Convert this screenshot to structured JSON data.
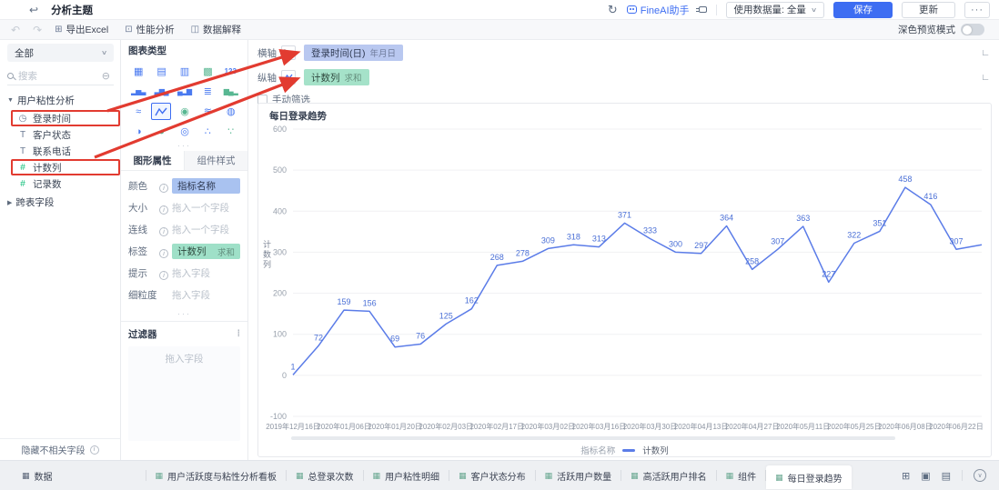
{
  "topbar": {
    "title": "分析主题",
    "fineai_label": "FineAI助手",
    "data_volume_label": "使用数据量: 全量",
    "save_label": "保存",
    "update_label": "更新",
    "more_label": "···"
  },
  "toolbar": {
    "export_excel": "导出Excel",
    "performance_analysis": "性能分析",
    "data_explanation": "数据解释",
    "dark_mode_label": "深色预览模式"
  },
  "sidebar": {
    "scope_selector": "全部",
    "search_placeholder": "搜索",
    "group_label": "用户粘性分析",
    "fields": [
      {
        "label": "登录时间",
        "icon": "clock-field-icon",
        "glyph": "◷",
        "color": "#6b7a93",
        "highlighted": true
      },
      {
        "label": "客户状态",
        "icon": "text-field-icon",
        "glyph": "T",
        "color": "#6b7a93",
        "highlighted": false
      },
      {
        "label": "联系电话",
        "icon": "text-field-icon",
        "glyph": "T",
        "color": "#6b7a93",
        "highlighted": false
      },
      {
        "label": "计数列",
        "icon": "number-field-icon",
        "glyph": "#",
        "color": "#10bf7a",
        "highlighted": true
      },
      {
        "label": "记录数",
        "icon": "record-count-field-icon",
        "glyph": "#",
        "color": "#10bf7a",
        "highlighted": false
      }
    ],
    "collapsed_group_label": "跨表字段",
    "hide_unrelated_label": "隐藏不相关字段"
  },
  "chart_panel": {
    "section_title": "图表类型",
    "chart_types": [
      {
        "name": "grouped-table-chart-icon",
        "glyph": "▦",
        "color": "#4a7af0"
      },
      {
        "name": "cross-table-chart-icon",
        "glyph": "▤",
        "color": "#4a7af0"
      },
      {
        "name": "detail-table-chart-icon",
        "glyph": "▥",
        "color": "#4a7af0"
      },
      {
        "name": "color-table-chart-icon",
        "glyph": "▩",
        "color": "#58b792"
      },
      {
        "name": "kpi-card-chart-icon",
        "glyph": "123",
        "color": "#4a7af0"
      },
      {
        "name": "column-chart-icon",
        "glyph": "▂▅▃",
        "color": "#4a7af0"
      },
      {
        "name": "stacked-column-chart-icon",
        "glyph": "▃▆▄",
        "color": "#4a7af0"
      },
      {
        "name": "combo-chart-icon",
        "glyph": "▄▂▆",
        "color": "#4a7af0"
      },
      {
        "name": "bar-chart-icon",
        "glyph": "≣",
        "color": "#4a7af0"
      },
      {
        "name": "waterfall-chart-icon",
        "glyph": "▆▄▂",
        "color": "#58b792"
      },
      {
        "name": "area-chart-icon",
        "glyph": "≈",
        "color": "#4a7af0"
      },
      {
        "name": "line-chart-icon",
        "glyph": "zigzag",
        "color": "#3d6df2",
        "selected": true
      },
      {
        "name": "map-chart-icon",
        "glyph": "◉",
        "color": "#58b792"
      },
      {
        "name": "curve-chart-icon",
        "glyph": "≋",
        "color": "#4a7af0"
      },
      {
        "name": "rose-chart-icon",
        "glyph": "◍",
        "color": "#4a7af0"
      },
      {
        "name": "pie-chart-icon",
        "glyph": "◑",
        "color": "#4a7af0"
      },
      {
        "name": "donut-chart-icon",
        "glyph": "◕",
        "color": "#58b792"
      },
      {
        "name": "globe-chart-icon",
        "glyph": "◎",
        "color": "#4a7af0"
      },
      {
        "name": "scatter-chart-icon",
        "glyph": "∴",
        "color": "#4a7af0"
      },
      {
        "name": "bubble-chart-icon",
        "glyph": "∵",
        "color": "#58b792"
      }
    ],
    "tabs": [
      {
        "label": "图形属性",
        "active": true
      },
      {
        "label": "组件样式",
        "active": false
      }
    ],
    "attributes": [
      {
        "label": "颜色",
        "info": true,
        "pill": {
          "text": "指标名称",
          "suffix": "",
          "style": "blue"
        }
      },
      {
        "label": "大小",
        "info": true,
        "placeholder": "拖入一个字段"
      },
      {
        "label": "连线",
        "info": true,
        "placeholder": "拖入一个字段"
      },
      {
        "label": "标签",
        "info": true,
        "pill": {
          "text": "计数列",
          "suffix": "求和",
          "style": "green"
        }
      },
      {
        "label": "提示",
        "info": true,
        "placeholder": "拖入字段"
      },
      {
        "label": "细粒度",
        "info": false,
        "placeholder": "拖入字段"
      }
    ],
    "filter_title": "过滤器",
    "filter_placeholder": "拖入字段"
  },
  "canvas": {
    "x_axis": {
      "label": "横轴",
      "pill_text": "登录时间(日)",
      "pill_suffix": "年月日"
    },
    "y_axis": {
      "label": "纵轴",
      "pill_text": "计数列",
      "pill_suffix": "求和"
    },
    "manual_filter_label": "手动筛选"
  },
  "chart_data": {
    "type": "line",
    "title": "每日登录趋势",
    "ylabel": "计数列",
    "legend_title": "指标名称",
    "legend_series": "计数列",
    "line_color": "#5b7ce8",
    "label_color": "#4a6fd6",
    "ylim": [
      -100,
      600
    ],
    "y_ticks": [
      600,
      500,
      400,
      300,
      200,
      100,
      0,
      -100
    ],
    "x_tick_labels": [
      "2019年12月16日",
      "2020年01月06日",
      "2020年01月20日",
      "2020年02月03日",
      "2020年02月17日",
      "2020年03月02日",
      "2020年03月16日",
      "2020年03月30日",
      "2020年04月13日",
      "2020年04月27日",
      "2020年05月11日",
      "2020年05月25日",
      "2020年06月08日",
      "2020年06月22日"
    ],
    "values": [
      1,
      72,
      159,
      156,
      69,
      76,
      125,
      162,
      268,
      278,
      309,
      318,
      313,
      371,
      333,
      300,
      297,
      364,
      258,
      307,
      363,
      227,
      322,
      351,
      458,
      416,
      307,
      318
    ],
    "point_labels": [
      "1",
      "72",
      "159",
      "156",
      "69",
      "76",
      "125",
      "162",
      "268",
      "278",
      "309",
      "318",
      "313",
      "371",
      "333",
      "300",
      "297",
      "364",
      "258",
      "307",
      "363",
      "227",
      "322",
      "351",
      "458",
      "416",
      "307",
      ""
    ]
  },
  "footer": {
    "data_tab": "数据",
    "tabs": [
      "用户活跃度与粘性分析看板",
      "总登录次数",
      "用户粘性明细",
      "客户状态分布",
      "活跃用户数量",
      "高活跃用户排名",
      "组件",
      "每日登录趋势"
    ],
    "active_tab": "每日登录趋势"
  },
  "colors": {
    "accent_blue": "#3d6df2",
    "pill_blue_bg": "#a9c2f0",
    "pill_green_bg": "#9fe0c8",
    "line_color": "#5b7ce8",
    "annotation_red": "#e23b30"
  }
}
